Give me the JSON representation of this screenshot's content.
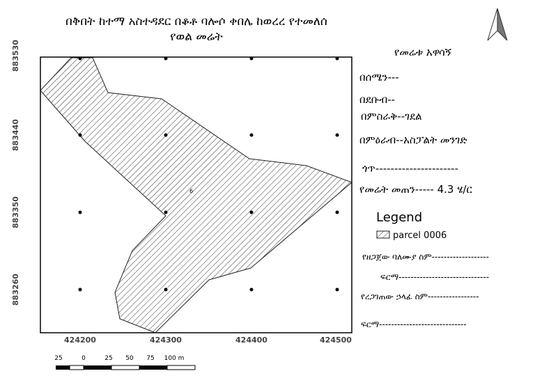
{
  "header": {
    "title_line1": "በቅበት ከተማ አስተዳደር በቆቶ ባሎሶ ቀበሌ ከወረረ የተመለሰ",
    "title_line2": "የወል መሬት"
  },
  "map": {
    "x_ticks": [
      "424200",
      "424300",
      "424400",
      "424500"
    ],
    "y_ticks": [
      "883530",
      "883440",
      "883350",
      "883260"
    ],
    "parcel_label": "6"
  },
  "scale_bar": {
    "labels": [
      "25",
      "0",
      "25",
      "50",
      "75",
      "100 m"
    ]
  },
  "info": {
    "heading": "የመሬቱ አዋሳኝ",
    "north": "በሰሜን---",
    "south": "በደቡብ--",
    "east": "በምስራቅ--ገደል",
    "west": "በምዕራብ--አስፓልት መንገድ",
    "village": "ጎጥ----------------------",
    "area": "የመሬት መጠን----- 4.3 ሄ/ር"
  },
  "legend": {
    "title": "Legend",
    "item": "parcel 0006"
  },
  "signatures": {
    "prepared_by": "የዘጋጀው ባለሙያ ስም-------------------",
    "prepared_sign": "ፍርማ------------------------------",
    "approved_by": "የረጋገጠው ኃላፊ ስም-----------------",
    "approved_sign": "ፍርማ-----------------------------"
  }
}
